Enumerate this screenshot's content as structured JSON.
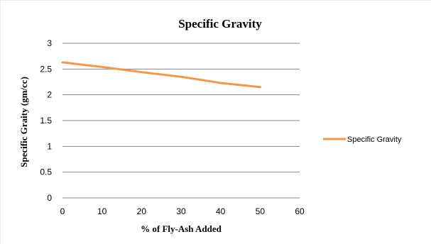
{
  "chart_data": {
    "type": "line",
    "title": "Specific Gravity",
    "xlabel": "% of Fly-Ash  Added",
    "ylabel": "Specific Graity  (gm/cc)",
    "xlim": [
      0,
      60
    ],
    "ylim": [
      0,
      3
    ],
    "xticks": [
      "0",
      "10",
      "20",
      "30",
      "40",
      "50",
      "60"
    ],
    "yticks": [
      "0",
      "0.5",
      "1",
      "1.5",
      "2",
      "2.5",
      "3"
    ],
    "grid": true,
    "legend_position": "right",
    "series": [
      {
        "name": "Specific Gravity",
        "color": "#f79646",
        "x": [
          0,
          10,
          20,
          30,
          40,
          50
        ],
        "y": [
          2.63,
          2.54,
          2.44,
          2.35,
          2.23,
          2.15
        ]
      }
    ]
  }
}
